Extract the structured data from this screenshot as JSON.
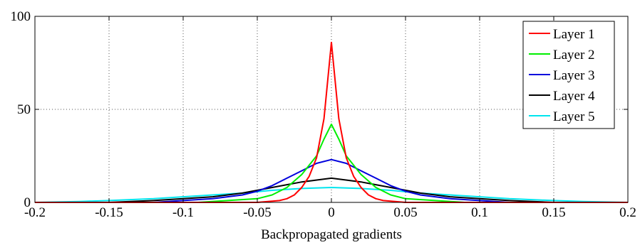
{
  "chart_data": {
    "type": "line",
    "xlabel": "Backpropagated gradients",
    "ylabel": "",
    "xlim": [
      -0.2,
      0.2
    ],
    "ylim": [
      0,
      100
    ],
    "xticks": [
      "-0.2",
      "-0.15",
      "-0.1",
      "-0.05",
      "0",
      "0.05",
      "0.1",
      "0.15",
      "0.2"
    ],
    "yticks": [
      "0",
      "50",
      "100"
    ],
    "grid": true,
    "legend_position": "top-right",
    "series": [
      {
        "name": "Layer 1",
        "color": "#ff0000",
        "x": [
          -0.2,
          -0.05,
          -0.035,
          -0.03,
          -0.025,
          -0.02,
          -0.015,
          -0.01,
          -0.005,
          0,
          0.005,
          0.01,
          0.015,
          0.02,
          0.025,
          0.03,
          0.035,
          0.05,
          0.2
        ],
        "y": [
          0,
          0,
          1,
          2,
          4,
          8,
          14,
          24,
          45,
          86,
          45,
          24,
          14,
          8,
          4,
          2,
          1,
          0,
          0
        ]
      },
      {
        "name": "Layer 2",
        "color": "#00ee00",
        "x": [
          -0.2,
          -0.09,
          -0.07,
          -0.05,
          -0.04,
          -0.03,
          -0.02,
          -0.01,
          -0.005,
          0,
          0.005,
          0.01,
          0.02,
          0.03,
          0.04,
          0.05,
          0.07,
          0.09,
          0.2
        ],
        "y": [
          0,
          0,
          1,
          2,
          4,
          8,
          15,
          25,
          34,
          42,
          34,
          25,
          15,
          8,
          4,
          2,
          1,
          0,
          0
        ]
      },
      {
        "name": "Layer 3",
        "color": "#0000dd",
        "x": [
          -0.2,
          -0.12,
          -0.1,
          -0.08,
          -0.06,
          -0.05,
          -0.04,
          -0.03,
          -0.02,
          -0.01,
          0,
          0.01,
          0.02,
          0.03,
          0.04,
          0.05,
          0.06,
          0.08,
          0.1,
          0.12,
          0.2
        ],
        "y": [
          0,
          0,
          1,
          2,
          4,
          6,
          9,
          13,
          17,
          21,
          23,
          21,
          17,
          13,
          9,
          6,
          4,
          2,
          1,
          0,
          0
        ]
      },
      {
        "name": "Layer 4",
        "color": "#000000",
        "x": [
          -0.2,
          -0.15,
          -0.12,
          -0.1,
          -0.08,
          -0.06,
          -0.04,
          -0.02,
          0,
          0.02,
          0.04,
          0.06,
          0.08,
          0.1,
          0.12,
          0.15,
          0.2
        ],
        "y": [
          0,
          0,
          1,
          2,
          3,
          5,
          8,
          11,
          13,
          11,
          8,
          5,
          3,
          2,
          1,
          0,
          0
        ]
      },
      {
        "name": "Layer 5",
        "color": "#00e5ee",
        "x": [
          -0.2,
          -0.17,
          -0.15,
          -0.12,
          -0.1,
          -0.08,
          -0.06,
          -0.04,
          -0.02,
          0,
          0.02,
          0.04,
          0.06,
          0.08,
          0.1,
          0.12,
          0.15,
          0.17,
          0.2
        ],
        "y": [
          0,
          0.5,
          1,
          2,
          3,
          4,
          5,
          6.5,
          7.5,
          8,
          7.5,
          6.5,
          5,
          4,
          3,
          2,
          1,
          0.5,
          0
        ]
      }
    ]
  }
}
